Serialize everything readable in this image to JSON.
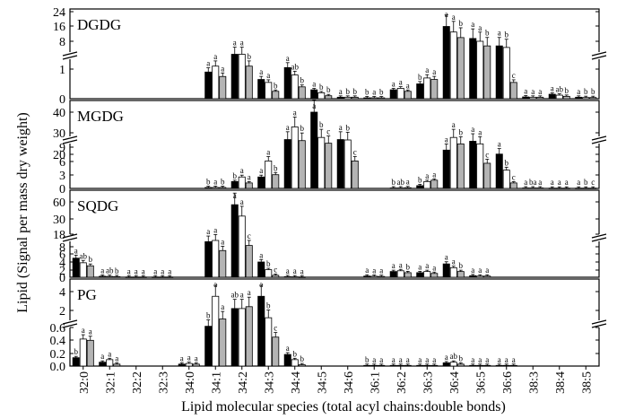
{
  "chart_data": {
    "type": "bar",
    "ylabel": "Lipid (Signal per mass dry weight)",
    "xlabel": "Lipid molecular species (total acyl chains:double bonds)",
    "categories": [
      "32:0",
      "32:1",
      "32:2",
      "32:3",
      "34:0",
      "34:1",
      "34:2",
      "34:3",
      "34:4",
      "34:5",
      "34:6",
      "36:1",
      "36:2",
      "36:3",
      "36:4",
      "36:5",
      "36:6",
      "38:3",
      "38:4",
      "38:5"
    ],
    "series_names": [
      "black",
      "white",
      "gray"
    ],
    "colors": {
      "black": "#000000",
      "white": "#ffffff",
      "gray": "#b4b4b4"
    },
    "panels": [
      {
        "title": "DGDG",
        "upper_ticks": [
          "8",
          "16",
          "24"
        ],
        "lower_ticks": [
          "0",
          "1"
        ],
        "values": [
          [
            0,
            0,
            0
          ],
          [
            0,
            0,
            0
          ],
          [
            0,
            0,
            0
          ],
          [
            0,
            0,
            0
          ],
          [
            0,
            0,
            0
          ],
          [
            0.9,
            1.1,
            0.75
          ],
          [
            1.5,
            1.5,
            1.1
          ],
          [
            0.65,
            0.55,
            0.25
          ],
          [
            1.05,
            0.8,
            0.4
          ],
          [
            0.3,
            0.2,
            0.1
          ],
          [
            0.05,
            0.05,
            0.05
          ],
          [
            0.03,
            0.03,
            0.03
          ],
          [
            0.3,
            0.35,
            0.25
          ],
          [
            0.5,
            0.7,
            0.65
          ],
          [
            16,
            13,
            10
          ],
          [
            9.5,
            8,
            5
          ],
          [
            5,
            4,
            0.55
          ],
          [
            0.06,
            0.05,
            0.05
          ],
          [
            0.15,
            0.12,
            0.08
          ],
          [
            0.05,
            0.04,
            0.04
          ]
        ],
        "letters": [
          [
            "",
            "",
            ""
          ],
          [
            "",
            "",
            ""
          ],
          [
            "",
            "",
            ""
          ],
          [
            "",
            "",
            ""
          ],
          [
            "",
            "",
            ""
          ],
          [
            "a",
            "a",
            "a"
          ],
          [
            "a",
            "a",
            "b"
          ],
          [
            "a",
            "a",
            "b"
          ],
          [
            "a",
            "ab",
            "b"
          ],
          [
            "a",
            "b",
            "b"
          ],
          [
            "a",
            "b",
            "b"
          ],
          [
            "b",
            "a",
            "b"
          ],
          [
            "a",
            "a",
            "a"
          ],
          [
            "b",
            "a",
            "a"
          ],
          [
            "a",
            "a",
            "b"
          ],
          [
            "a",
            "a",
            "b"
          ],
          [
            "a",
            "b",
            "c"
          ],
          [
            "a",
            "a",
            "a"
          ],
          [
            "a",
            "ab",
            "b"
          ],
          [
            "a",
            "b",
            "b"
          ]
        ]
      },
      {
        "title": "MGDG",
        "upper_ticks": [
          "20",
          "30",
          "40"
        ],
        "lower_ticks": [
          "0",
          "3",
          "6",
          "9"
        ],
        "values": [
          [
            0,
            0,
            0
          ],
          [
            0,
            0,
            0
          ],
          [
            0,
            0,
            0
          ],
          [
            0,
            0,
            0
          ],
          [
            0,
            0,
            0
          ],
          [
            0.2,
            0.2,
            0.2
          ],
          [
            1.5,
            2.5,
            1.2
          ],
          [
            2.5,
            6,
            3
          ],
          [
            27,
            33,
            19
          ],
          [
            40,
            28,
            15
          ],
          [
            27,
            20,
            6
          ],
          [
            0,
            0,
            0
          ],
          [
            0.1,
            0.1,
            0.15
          ],
          [
            0.6,
            1.5,
            1.8
          ],
          [
            22,
            28,
            14
          ],
          [
            18,
            14,
            5.5
          ],
          [
            7.5,
            4,
            1.2
          ],
          [
            0.1,
            0.1,
            0.1
          ],
          [
            0.05,
            0.05,
            0.05
          ],
          [
            0.05,
            0.05,
            0.05
          ]
        ],
        "letters": [
          [
            "",
            "",
            ""
          ],
          [
            "",
            "",
            ""
          ],
          [
            "",
            "",
            ""
          ],
          [
            "",
            "",
            ""
          ],
          [
            "",
            "",
            ""
          ],
          [
            "b",
            "a",
            "b"
          ],
          [
            "b",
            "a",
            "a"
          ],
          [
            "a",
            "a",
            "b"
          ],
          [
            "a",
            "a",
            "b"
          ],
          [
            "a",
            "b",
            "c"
          ],
          [
            "a",
            "b",
            "c"
          ],
          [
            "",
            "",
            ""
          ],
          [
            "b",
            "ab",
            "a"
          ],
          [
            "b",
            "a",
            "a"
          ],
          [
            "a",
            "a",
            "b"
          ],
          [
            "a",
            "a",
            "c"
          ],
          [
            "a",
            "b",
            "c"
          ],
          [
            "a",
            "ba",
            "a"
          ],
          [
            "a",
            "a",
            "a"
          ],
          [
            "a",
            "b",
            "c"
          ]
        ]
      },
      {
        "title": "SQDG",
        "upper_ticks": [
          "18",
          "30",
          "60"
        ],
        "lower_ticks": [
          "0",
          "2",
          "4",
          "6",
          "8"
        ],
        "values": [
          [
            5,
            3.8,
            3
          ],
          [
            0.25,
            0.2,
            0.15
          ],
          [
            0.05,
            0.05,
            0.05
          ],
          [
            0.05,
            0.05,
            0.05
          ],
          [
            0,
            0,
            0
          ],
          [
            12,
            13,
            7
          ],
          [
            55,
            35,
            9
          ],
          [
            4,
            2,
            0.5
          ],
          [
            0.15,
            0.1,
            0.05
          ],
          [
            0,
            0,
            0
          ],
          [
            0,
            0,
            0
          ],
          [
            0.3,
            0.25,
            0.2
          ],
          [
            1.5,
            1.7,
            1.2
          ],
          [
            1.2,
            1.5,
            1
          ],
          [
            3.5,
            2.5,
            1.5
          ],
          [
            0.4,
            0.3,
            0.3
          ],
          [
            0,
            0,
            0
          ],
          [
            0,
            0,
            0
          ],
          [
            0,
            0,
            0
          ],
          [
            0,
            0,
            0
          ]
        ],
        "letters": [
          [
            "a",
            "ab",
            "b"
          ],
          [
            "a",
            "ab",
            "b"
          ],
          [
            "a",
            "a",
            "a"
          ],
          [
            "a",
            "a",
            "a"
          ],
          [
            "",
            "",
            ""
          ],
          [
            "a",
            "a",
            "a"
          ],
          [
            "a",
            "a",
            "c"
          ],
          [
            "a",
            "b",
            "c"
          ],
          [
            "a",
            "a",
            "a"
          ],
          [
            "",
            "",
            ""
          ],
          [
            "",
            "",
            ""
          ],
          [
            "a",
            "a",
            "a"
          ],
          [
            "a",
            "a",
            "b"
          ],
          [
            "a",
            "a",
            "a"
          ],
          [
            "a",
            "a",
            "b"
          ],
          [
            "a",
            "a",
            "a"
          ],
          [
            "",
            "",
            ""
          ],
          [
            "",
            "",
            ""
          ],
          [
            "",
            "",
            ""
          ],
          [
            "",
            "",
            ""
          ]
        ]
      },
      {
        "title": "PG",
        "upper_ticks": [
          "2",
          "4"
        ],
        "lower_ticks": [
          "0.0",
          "0.2",
          "0.4",
          "0.6"
        ],
        "values": [
          [
            0.13,
            0.42,
            0.4
          ],
          [
            0.06,
            0.1,
            0.03
          ],
          [
            0,
            0,
            0
          ],
          [
            0,
            0,
            0
          ],
          [
            0.03,
            0.04,
            0.03
          ],
          [
            0.7,
            3.5,
            1.3
          ],
          [
            2.2,
            2.2,
            2.4
          ],
          [
            3.5,
            1.4,
            0.45
          ],
          [
            0.18,
            0.1,
            0.02
          ],
          [
            0,
            0,
            0
          ],
          [
            0,
            0,
            0
          ],
          [
            0.01,
            0.01,
            0.01
          ],
          [
            0.01,
            0.01,
            0.01
          ],
          [
            0.01,
            0.01,
            0.01
          ],
          [
            0.05,
            0.06,
            0.03
          ],
          [
            0.01,
            0.01,
            0.01
          ],
          [
            0.01,
            0.01,
            0.01
          ],
          [
            0,
            0,
            0
          ],
          [
            0,
            0,
            0
          ],
          [
            0,
            0,
            0
          ]
        ],
        "letters": [
          [
            "b",
            "a",
            "a"
          ],
          [
            "a",
            "a",
            "a"
          ],
          [
            "",
            "",
            ""
          ],
          [
            "",
            "",
            ""
          ],
          [
            "a",
            "a",
            "a"
          ],
          [
            "b",
            "a",
            "a"
          ],
          [
            "ab",
            "a",
            "a"
          ],
          [
            "a",
            "b",
            "c"
          ],
          [
            "a",
            "b",
            "b"
          ],
          [
            "",
            "",
            ""
          ],
          [
            "",
            "",
            ""
          ],
          [
            "b",
            "a",
            "a"
          ],
          [
            "a",
            "a",
            "a"
          ],
          [
            "a",
            "a",
            "a"
          ],
          [
            "a",
            "ab",
            "b"
          ],
          [
            "a",
            "a",
            "a"
          ],
          [
            "a",
            "a",
            "a"
          ],
          [
            "",
            "",
            ""
          ],
          [
            "",
            "",
            ""
          ],
          [
            "",
            "",
            ""
          ]
        ]
      }
    ]
  }
}
